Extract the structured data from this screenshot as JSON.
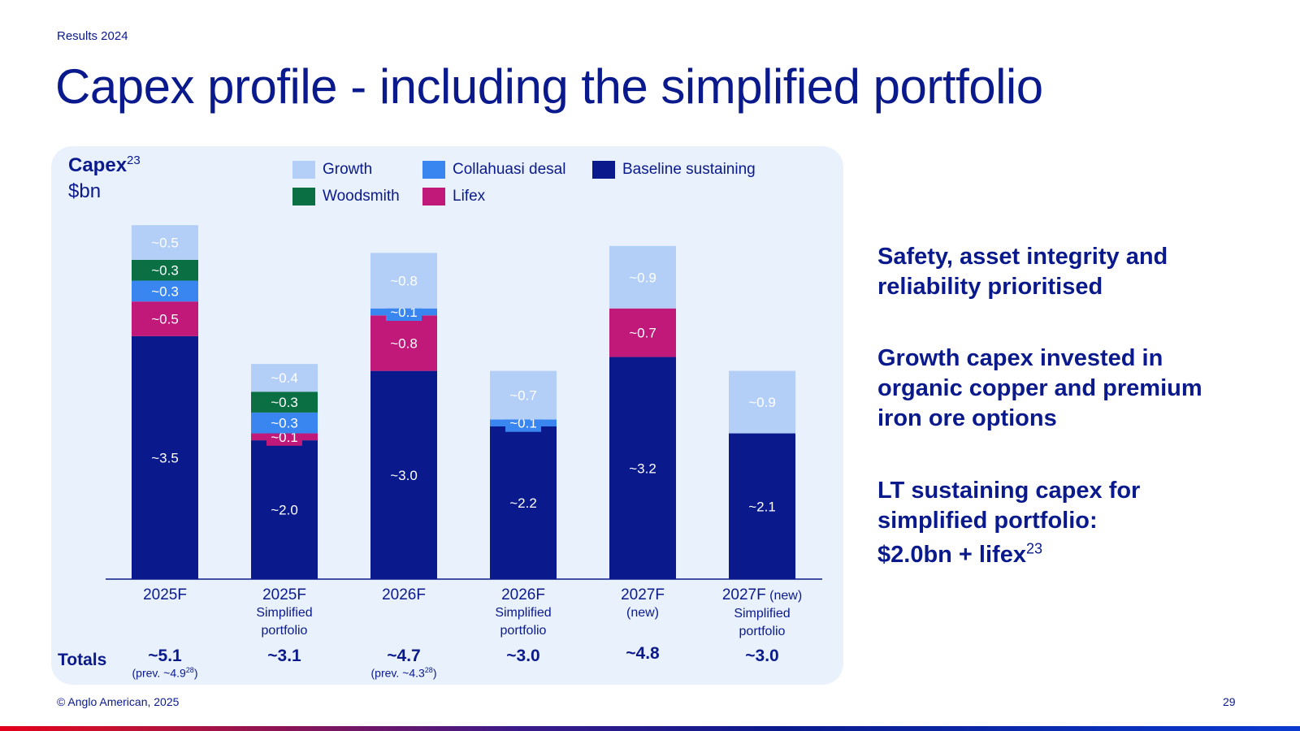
{
  "header": {
    "kicker": "Results 2024",
    "title": "Capex profile - including the simplified portfolio"
  },
  "chart_header": {
    "title": "Capex",
    "title_sup": "23",
    "unit": "$bn"
  },
  "legend": [
    {
      "label": "Growth",
      "color": "#b3cff7"
    },
    {
      "label": "Collahuasi desal",
      "color": "#3a86f0"
    },
    {
      "label": "Baseline sustaining",
      "color": "#0a1a8c"
    },
    {
      "label": "Woodsmith",
      "color": "#0a7044"
    },
    {
      "label": "Lifex",
      "color": "#c0197a"
    }
  ],
  "chart_data": {
    "type": "bar",
    "stacked": true,
    "title": "Capex $bn",
    "categories": [
      {
        "main": "2025F",
        "qual": "",
        "sub": []
      },
      {
        "main": "2025F",
        "qual": "",
        "sub": [
          "Simplified",
          "portfolio"
        ]
      },
      {
        "main": "2026F",
        "qual": "",
        "sub": []
      },
      {
        "main": "2026F",
        "qual": "",
        "sub": [
          "Simplified",
          "portfolio"
        ]
      },
      {
        "main": "2027F",
        "qual": "",
        "sub": [
          "(new)"
        ]
      },
      {
        "main": "2027F",
        "qual": "(new)",
        "sub": [
          "Simplified",
          "portfolio"
        ]
      }
    ],
    "series": [
      {
        "name": "Baseline sustaining",
        "color": "#0a1a8c",
        "values": [
          3.5,
          2.0,
          3.0,
          2.2,
          3.2,
          2.1
        ],
        "labels": [
          "~3.5",
          "~2.0",
          "~3.0",
          "~2.2",
          "~3.2",
          "~2.1"
        ]
      },
      {
        "name": "Lifex",
        "color": "#c0197a",
        "values": [
          0.5,
          0.1,
          0.8,
          0,
          0.7,
          0
        ],
        "labels": [
          "~0.5",
          "~0.1",
          "~0.8",
          "",
          "~0.7",
          ""
        ]
      },
      {
        "name": "Collahuasi desal",
        "color": "#3a86f0",
        "values": [
          0.3,
          0.3,
          0.1,
          0.1,
          0,
          0
        ],
        "labels": [
          "~0.3",
          "~0.3",
          "~0.1",
          "~0.1",
          "",
          ""
        ]
      },
      {
        "name": "Woodsmith",
        "color": "#0a7044",
        "values": [
          0.3,
          0.3,
          0,
          0,
          0,
          0
        ],
        "labels": [
          "~0.3",
          "~0.3",
          "",
          "",
          "",
          ""
        ]
      },
      {
        "name": "Growth",
        "color": "#b3cff7",
        "values": [
          0.5,
          0.4,
          0.8,
          0.7,
          0.9,
          0.9
        ],
        "labels": [
          "~0.5",
          "~0.4",
          "~0.8",
          "~0.7",
          "~0.9",
          "~0.9"
        ]
      }
    ],
    "ylim": [
      0,
      5.5
    ],
    "totals_label": "Totals",
    "totals": [
      {
        "value": "~5.1",
        "prev": "(prev. ~4.9",
        "prev_sup": "28",
        "prev_close": ")"
      },
      {
        "value": "~3.1",
        "prev": "",
        "prev_sup": "",
        "prev_close": ""
      },
      {
        "value": "~4.7",
        "prev": "(prev. ~4.3",
        "prev_sup": "28",
        "prev_close": ")"
      },
      {
        "value": "~3.0",
        "prev": "",
        "prev_sup": "",
        "prev_close": ""
      },
      {
        "value": "~4.8",
        "prev": "",
        "prev_sup": "",
        "prev_close": ""
      },
      {
        "value": "~3.0",
        "prev": "",
        "prev_sup": "",
        "prev_close": ""
      }
    ]
  },
  "side_points": [
    {
      "lines": [
        "Safety, asset integrity and",
        "reliability prioritised"
      ]
    },
    {
      "lines": [
        "Growth capex invested in",
        "organic copper and premium",
        "iron ore options"
      ]
    },
    {
      "lines": [
        "LT sustaining capex for",
        "simplified portfolio:"
      ],
      "last": "$2.0bn + lifex",
      "last_sup": "23"
    }
  ],
  "footer": {
    "copyright": "© Anglo American, 2025",
    "page": "29"
  }
}
